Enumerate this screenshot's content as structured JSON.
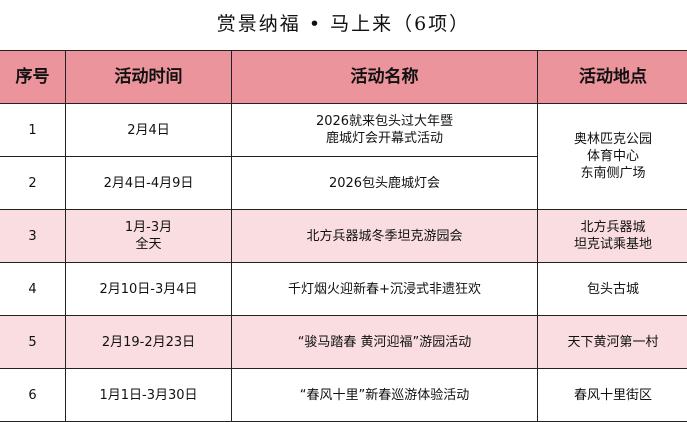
{
  "title": "赏景纳福 • 马上来（6项）",
  "headers": [
    "序号",
    "活动时间",
    "活动名称",
    "活动地点"
  ],
  "rows": [
    {
      "no": "1",
      "time": [
        "2月4日"
      ],
      "name": [
        "2026就来包头过大年暨",
        "鹿城灯会开幕式活动"
      ],
      "location": [
        "奥林匹克公园",
        "体育中心",
        "东南侧广场"
      ]
    },
    {
      "no": "2",
      "time": [
        "2月4日-4月9日"
      ],
      "name": [
        "2026包头鹿城灯会"
      ]
    },
    {
      "no": "3",
      "time": [
        "1月-3月",
        "全天"
      ],
      "name": [
        "北方兵器城冬季坦克游园会"
      ],
      "location": [
        "北方兵器城",
        "坦克试乘基地"
      ]
    },
    {
      "no": "4",
      "time": [
        "2月10日-3月4日"
      ],
      "name": [
        "千灯烟火迎新春+沉浸式非遗狂欢"
      ],
      "location": [
        "包头古城"
      ]
    },
    {
      "no": "5",
      "time": [
        "2月19-2月23日"
      ],
      "name": [
        "“骏马踏春 黄河迎福”游园活动"
      ],
      "location": [
        "天下黄河第一村"
      ]
    },
    {
      "no": "6",
      "time": [
        "1月1日-3月30日"
      ],
      "name": [
        "“春风十里”新春巡游体验活动"
      ],
      "location": [
        "春风十里街区"
      ]
    }
  ],
  "colors": {
    "header_bg": "#ec949b",
    "highlight_row_bg": "#f9dde0"
  }
}
